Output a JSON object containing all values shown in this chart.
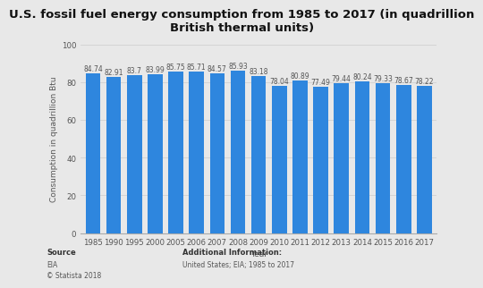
{
  "title": "U.S. fossil fuel energy consumption from 1985 to 2017 (in quadrillion\nBritish thermal units)",
  "xlabel": "Year",
  "ylabel": "Consumption in quadrillion Btu",
  "categories": [
    "1985",
    "1990",
    "1995",
    "2000",
    "2005",
    "2006",
    "2007",
    "2008",
    "2009",
    "2010",
    "2011",
    "2012",
    "2013",
    "2014",
    "2015",
    "2016",
    "2017"
  ],
  "values": [
    84.74,
    82.91,
    83.7,
    83.99,
    85.75,
    85.71,
    84.57,
    85.93,
    83.18,
    78.04,
    80.89,
    77.49,
    79.44,
    80.24,
    79.33,
    78.67,
    78.22
  ],
  "bar_color": "#2e86de",
  "ylim": [
    0,
    100
  ],
  "yticks": [
    0,
    20,
    40,
    60,
    80,
    100
  ],
  "background_color": "#e8e8e8",
  "plot_background_color": "#e8e8e8",
  "title_fontsize": 9.5,
  "label_fontsize": 6.5,
  "tick_fontsize": 6.2,
  "value_fontsize": 5.5,
  "footer_source_label": "Source",
  "footer_source_line1": "EIA",
  "footer_source_line2": "© Statista 2018",
  "footer_add_label": "Additional Information:",
  "footer_add": "United States; EIA; 1985 to 2017"
}
